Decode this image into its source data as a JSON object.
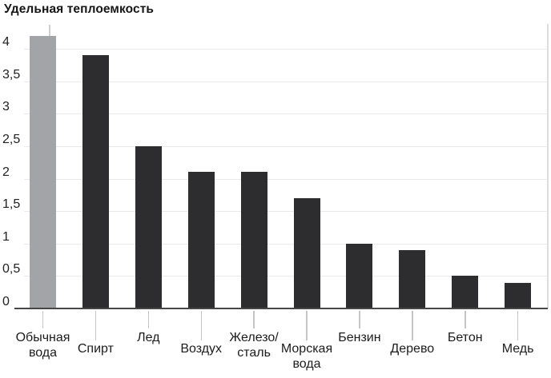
{
  "chart_data": {
    "type": "bar",
    "title": "Удельная теплоемкость",
    "categories": [
      "Обычная вода",
      "Спирт",
      "Лед",
      "Воздух",
      "Железо/сталь",
      "Морская вода",
      "Бензин",
      "Дерево",
      "Бетон",
      "Медь"
    ],
    "label_lines": [
      [
        "Обычная",
        "вода"
      ],
      [
        "Спирт"
      ],
      [
        "Лед"
      ],
      [
        "Воздух"
      ],
      [
        "Железо/",
        "сталь"
      ],
      [
        "Морская",
        "вода"
      ],
      [
        "Бензин"
      ],
      [
        "Дерево"
      ],
      [
        "Бетон"
      ],
      [
        "Медь"
      ]
    ],
    "label_rows": [
      "upper",
      "lower",
      "upper",
      "lower",
      "upper",
      "lower",
      "upper",
      "lower",
      "upper",
      "lower"
    ],
    "values": [
      4.2,
      3.9,
      2.5,
      2.1,
      2.1,
      1.7,
      1.0,
      0.9,
      0.5,
      0.4
    ],
    "highlighted_index": 0,
    "y_ticks": [
      {
        "value": 0,
        "label": "0"
      },
      {
        "value": 0.5,
        "label": "0,5"
      },
      {
        "value": 1,
        "label": "1"
      },
      {
        "value": 1.5,
        "label": "1,5"
      },
      {
        "value": 2,
        "label": "2"
      },
      {
        "value": 2.5,
        "label": "2,5"
      },
      {
        "value": 3,
        "label": "3"
      },
      {
        "value": 3.5,
        "label": "3,5"
      },
      {
        "value": 4,
        "label": "4"
      }
    ],
    "ylim": [
      0,
      4.35
    ],
    "xlabel": "",
    "ylabel": "",
    "grid": "horizontal-only",
    "legend": "none",
    "decimal_separator": ","
  },
  "colors": {
    "bar_dark": "#2d2d2f",
    "bar_highlight": "#a2a4a7",
    "gridline": "#e9e9e9",
    "axis_line": "#474747",
    "leader_line": "#c6c6c6",
    "right_border": "#dcdcdc",
    "text": "#1c1c1c"
  }
}
